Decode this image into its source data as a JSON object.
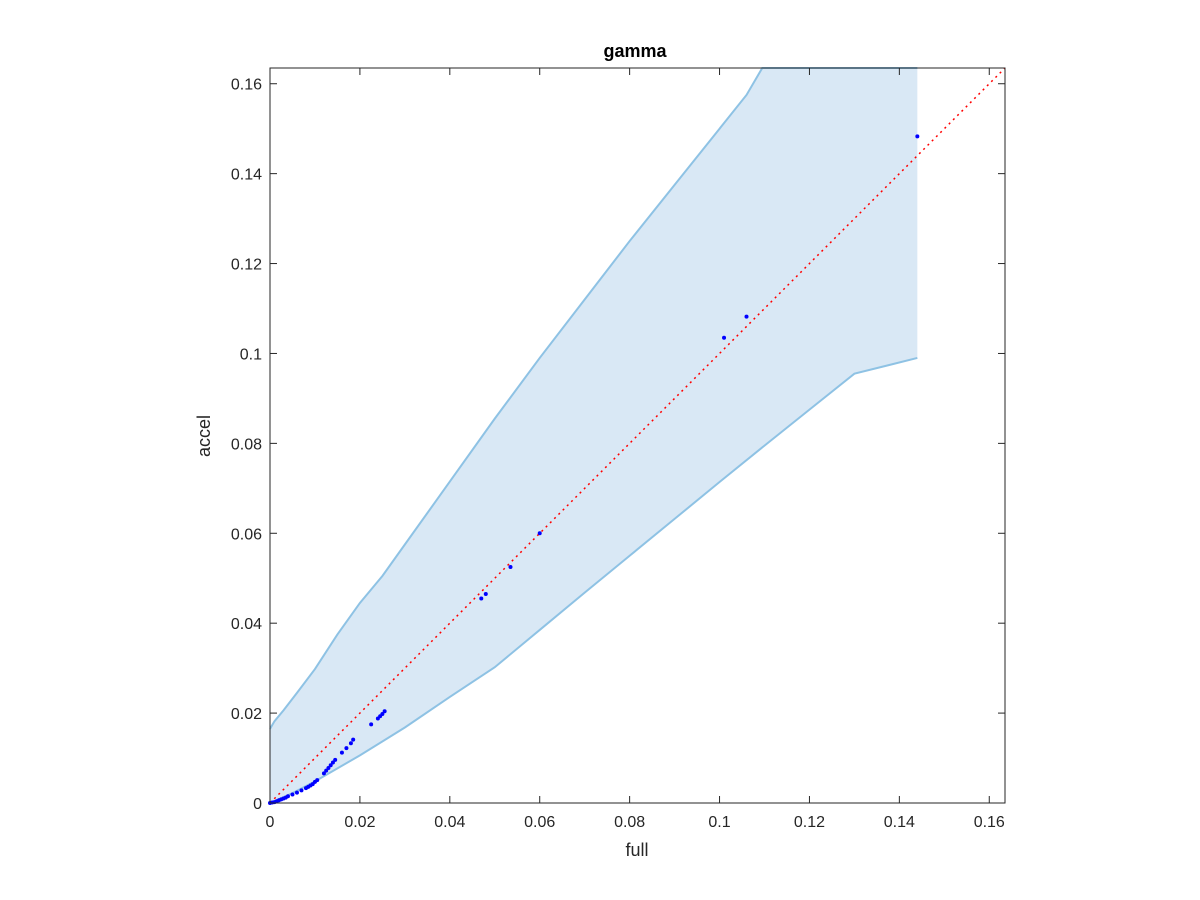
{
  "chart_data": {
    "type": "scatter",
    "title": "gamma",
    "xlabel": "full",
    "ylabel": "accel",
    "xlim": [
      0,
      0.1635
    ],
    "ylim": [
      0,
      0.1635
    ],
    "xticks": [
      0,
      0.02,
      0.04,
      0.06,
      0.08,
      0.1,
      0.12,
      0.14,
      0.16
    ],
    "yticks": [
      0,
      0.02,
      0.04,
      0.06,
      0.08,
      0.1,
      0.12,
      0.14,
      0.16
    ],
    "tick_labels": [
      "0",
      "0.02",
      "0.04",
      "0.06",
      "0.08",
      "0.1",
      "0.12",
      "0.14",
      "0.16"
    ],
    "grid": false,
    "reference_line": {
      "style": "dotted",
      "color": "#ff0000",
      "x": [
        0,
        0.1635
      ],
      "y": [
        0,
        0.1635
      ]
    },
    "band": {
      "fill_color": "#d9e8f5",
      "edge_color": "#8ec2e4",
      "upper": {
        "x": [
          0,
          0.001,
          0.003,
          0.006,
          0.01,
          0.015,
          0.02,
          0.025,
          0.03,
          0.04,
          0.05,
          0.06,
          0.07,
          0.08,
          0.09,
          0.1,
          0.106,
          0.1095,
          0.144
        ],
        "y": [
          0.0165,
          0.0182,
          0.0206,
          0.0245,
          0.0298,
          0.0375,
          0.0445,
          0.0505,
          0.0575,
          0.0715,
          0.0855,
          0.099,
          0.112,
          0.125,
          0.1375,
          0.15,
          0.1575,
          0.1635,
          0.1635
        ]
      },
      "lower": {
        "x": [
          0,
          0.005,
          0.01,
          0.02,
          0.03,
          0.04,
          0.05,
          0.06,
          0.07,
          0.08,
          0.09,
          0.1,
          0.11,
          0.12,
          0.13,
          0.144
        ],
        "y": [
          0,
          0.0022,
          0.0048,
          0.0106,
          0.0168,
          0.0236,
          0.0302,
          0.0385,
          0.0468,
          0.055,
          0.0632,
          0.0714,
          0.0795,
          0.0875,
          0.0955,
          0.099
        ]
      }
    },
    "points": {
      "color": "#0000ff",
      "x": [
        0,
        0.0005,
        0.001,
        0.0015,
        0.002,
        0.0025,
        0.003,
        0.0035,
        0.004,
        0.005,
        0.006,
        0.007,
        0.008,
        0.0085,
        0.009,
        0.0095,
        0.01,
        0.0105,
        0.012,
        0.0125,
        0.013,
        0.0135,
        0.014,
        0.0145,
        0.016,
        0.017,
        0.018,
        0.0185,
        0.0225,
        0.024,
        0.0245,
        0.025,
        0.0255,
        0.047,
        0.048,
        0.0535,
        0.06,
        0.101,
        0.106,
        0.144
      ],
      "y": [
        0,
        0.0001,
        0.0002,
        0.0004,
        0.0006,
        0.0008,
        0.001,
        0.0012,
        0.0015,
        0.0019,
        0.0023,
        0.0028,
        0.0033,
        0.0036,
        0.0039,
        0.0042,
        0.0047,
        0.0051,
        0.0066,
        0.0072,
        0.0078,
        0.0084,
        0.009,
        0.0096,
        0.0112,
        0.0122,
        0.0133,
        0.0141,
        0.0175,
        0.0188,
        0.0193,
        0.0198,
        0.0204,
        0.0455,
        0.0465,
        0.0525,
        0.06,
        0.1035,
        0.1082,
        0.1483
      ]
    }
  }
}
